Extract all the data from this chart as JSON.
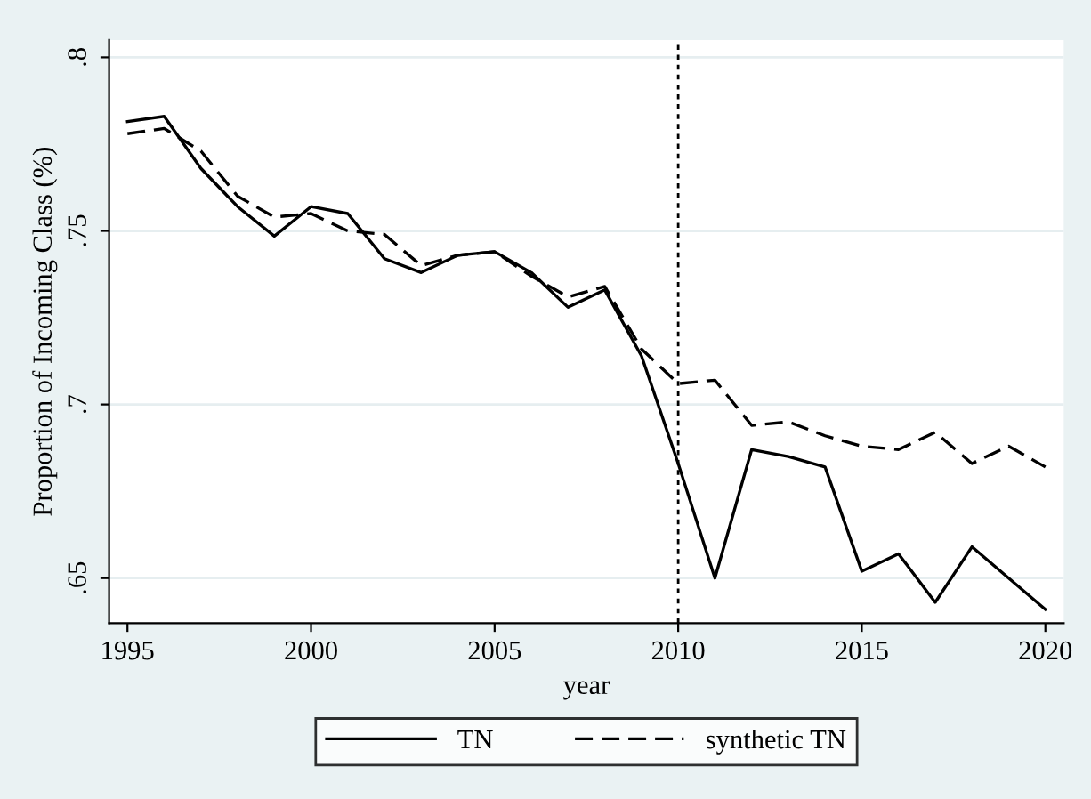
{
  "chart_data": {
    "type": "line",
    "xlabel": "year",
    "ylabel": "Proportion of Incoming Class (%)",
    "x": [
      1995,
      1996,
      1997,
      1998,
      1999,
      2000,
      2001,
      2002,
      2003,
      2004,
      2005,
      2006,
      2007,
      2008,
      2009,
      2010,
      2011,
      2012,
      2013,
      2014,
      2015,
      2016,
      2017,
      2018,
      2019,
      2020
    ],
    "series": [
      {
        "name": "TN",
        "color": "#000000",
        "line_style": "solid",
        "values": [
          0.7815,
          0.783,
          0.768,
          0.757,
          0.7485,
          0.757,
          0.755,
          0.742,
          0.738,
          0.743,
          0.744,
          0.738,
          0.728,
          0.733,
          0.714,
          0.683,
          0.65,
          0.687,
          0.685,
          0.682,
          0.652,
          0.657,
          0.643,
          0.659,
          0.65,
          0.641
        ]
      },
      {
        "name": "synthetic TN",
        "color": "#000000",
        "line_style": "dashed",
        "values": [
          0.778,
          0.7795,
          0.773,
          0.76,
          0.754,
          0.755,
          0.75,
          0.749,
          0.74,
          0.743,
          0.744,
          0.737,
          0.731,
          0.734,
          0.716,
          0.706,
          0.707,
          0.694,
          0.695,
          0.691,
          0.688,
          0.687,
          0.692,
          0.683,
          0.688,
          0.682
        ]
      }
    ],
    "xlim": [
      1994.5,
      2020.5
    ],
    "xticks": [
      1995,
      2000,
      2005,
      2010,
      2015,
      2020
    ],
    "ylim": [
      0.637,
      0.805
    ],
    "yticks": [
      {
        "value": 0.65,
        "label": ".65"
      },
      {
        "value": 0.7,
        "label": ".7"
      },
      {
        "value": 0.75,
        "label": ".75"
      },
      {
        "value": 0.8,
        "label": ".8"
      }
    ],
    "grid": "y",
    "legend": "bottom",
    "ref_lines": [
      {
        "axis": "x",
        "value": 2010,
        "color": "#000000",
        "line_style": "dotted"
      }
    ]
  }
}
